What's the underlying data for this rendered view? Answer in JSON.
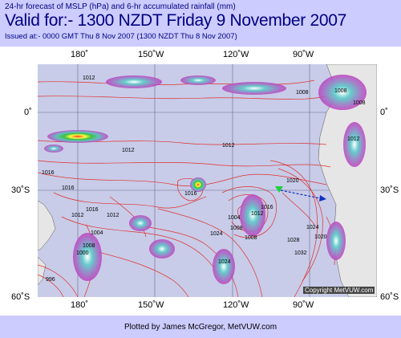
{
  "header": {
    "subtitle": "24-hr forecast of MSLP (hPa) and 6-hr accumulated rainfall (mm)",
    "title": "Valid for:- 1300 NZDT Friday  9 November 2007",
    "issued": "Issued at:- 0000 GMT Thu 8 Nov 2007 (1300 NZDT Thu 8 Nov 2007)"
  },
  "map": {
    "top_lon_labels": [
      "180˚",
      "150˚W",
      "120˚W",
      "90˚W"
    ],
    "bottom_lon_labels": [
      "180˚",
      "150˚W",
      "120˚W",
      "90˚W"
    ],
    "left_lat_labels": [
      "0˚",
      "30˚S",
      "60˚S"
    ],
    "right_lat_labels": [
      "0˚",
      "30˚S",
      "60˚S"
    ],
    "isobar_labels": [
      "1012",
      "1008",
      "1012",
      "1012",
      "1016",
      "1016",
      "1016",
      "1012",
      "1020",
      "1024",
      "1028",
      "1024",
      "1032",
      "1024",
      "1020",
      "1004",
      "1008",
      "1008",
      "1012",
      "1016",
      "1016",
      "1012",
      "1008",
      "1004",
      "1000",
      "996",
      "1008",
      "1008",
      "1012"
    ],
    "copyright": "Copyright MetVUW.com"
  },
  "footer": {
    "credit": "Plotted by James McGregor, MetVUW.com"
  }
}
